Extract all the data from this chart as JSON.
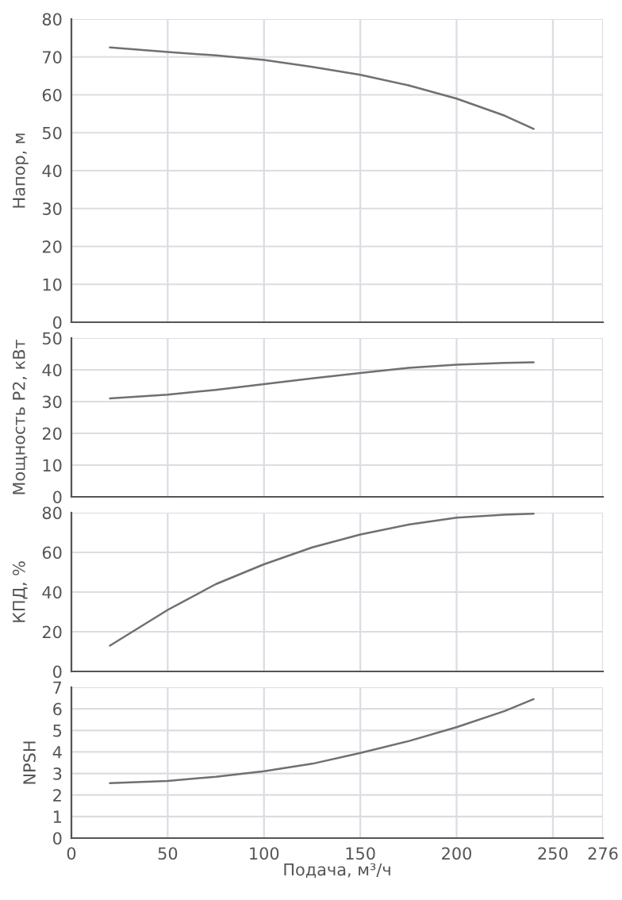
{
  "chart_data": [
    {
      "type": "line",
      "ylabel": "Напор, м",
      "x": [
        20,
        50,
        75,
        100,
        125,
        150,
        175,
        200,
        225,
        240
      ],
      "series": [
        {
          "color": "#707070",
          "values": [
            72.5,
            71.3,
            70.4,
            69.2,
            67.4,
            65.3,
            62.5,
            59,
            54.5,
            51
          ]
        }
      ],
      "xlim": [
        0,
        276
      ],
      "xticks": [
        0,
        50,
        100,
        150,
        200,
        250,
        276
      ],
      "ylim": [
        0,
        80
      ],
      "yticks": [
        0,
        10,
        20,
        30,
        40,
        50,
        60,
        70,
        80
      ],
      "grid": true,
      "tick_labels": "y"
    },
    {
      "type": "line",
      "ylabel": "Мощность P2, кВт",
      "x": [
        20,
        50,
        75,
        100,
        125,
        150,
        175,
        200,
        225,
        240
      ],
      "series": [
        {
          "color": "#707070",
          "values": [
            31,
            32.2,
            33.7,
            35.5,
            37.3,
            39,
            40.6,
            41.6,
            42.2,
            42.4
          ]
        }
      ],
      "xlim": [
        0,
        276
      ],
      "xticks": [
        0,
        50,
        100,
        150,
        200,
        250,
        276
      ],
      "ylim": [
        0,
        50
      ],
      "yticks": [
        0,
        10,
        20,
        30,
        40,
        50
      ],
      "grid": true,
      "tick_labels": "y"
    },
    {
      "type": "line",
      "ylabel": "КПД, %",
      "x": [
        20,
        50,
        75,
        100,
        125,
        150,
        175,
        200,
        225,
        240
      ],
      "series": [
        {
          "color": "#707070",
          "values": [
            13,
            31,
            44,
            54,
            62.5,
            69,
            74,
            77.5,
            79,
            79.5
          ]
        }
      ],
      "xlim": [
        0,
        276
      ],
      "xticks": [
        0,
        50,
        100,
        150,
        200,
        250,
        276
      ],
      "ylim": [
        0,
        80
      ],
      "yticks": [
        0,
        20,
        40,
        60,
        80
      ],
      "grid": true,
      "tick_labels": "y"
    },
    {
      "type": "line",
      "xlabel": "Подача, м³/ч",
      "ylabel": "NPSH",
      "x": [
        20,
        50,
        75,
        100,
        125,
        150,
        175,
        200,
        225,
        240
      ],
      "series": [
        {
          "color": "#707070",
          "values": [
            2.55,
            2.65,
            2.85,
            3.1,
            3.45,
            3.95,
            4.5,
            5.15,
            5.9,
            6.45
          ]
        }
      ],
      "xlim": [
        0,
        276
      ],
      "xticks": [
        0,
        50,
        100,
        150,
        200,
        250,
        276
      ],
      "ylim": [
        0,
        7
      ],
      "yticks": [
        0,
        1,
        2,
        3,
        4,
        5,
        6,
        7
      ],
      "grid": true
    }
  ]
}
